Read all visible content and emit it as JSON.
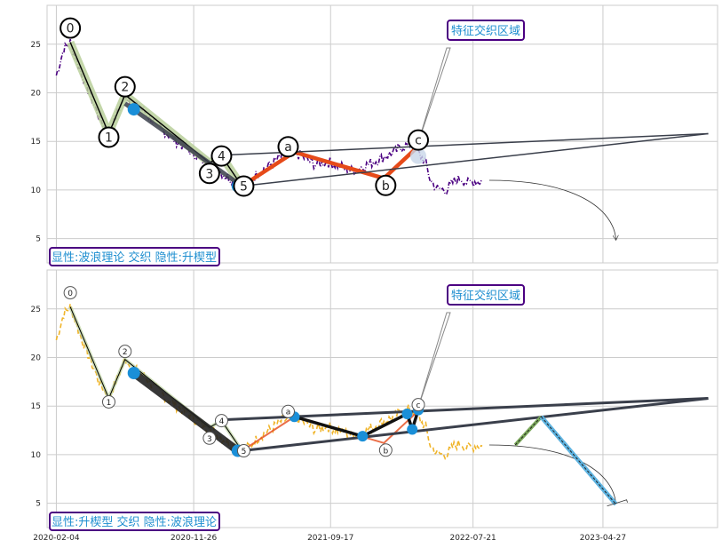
{
  "colors": {
    "top_price": "#4b0082",
    "bottom_price": "#f0b429",
    "box_border": "#4b0082",
    "box_text": "#1f8fd0",
    "impulse": "#000000",
    "impulse_glow": "#b8cf9a",
    "abc": "#e64a19",
    "triangle": "#3a3f4b",
    "node": "#1a8fd8",
    "target_line": "#5eb3e0"
  },
  "x_tick_labels": [
    "2020-02-04",
    "2020-11-26",
    "2021-09-17",
    "2022-07-21",
    "2023-04-27"
  ],
  "chart_data": [
    {
      "type": "line",
      "panel": "top",
      "xlim": [
        "2020-01-15",
        "2023-12-30"
      ],
      "ylim": [
        2.5,
        29
      ],
      "y_ticks": [
        5,
        10,
        15,
        20,
        25
      ],
      "grid": true,
      "price_series": {
        "x": [
          "2020-02-04",
          "2020-02-20",
          "2020-03-05",
          "2020-03-25",
          "2020-04-15",
          "2020-05-06",
          "2020-05-27",
          "2020-06-17",
          "2020-07-01",
          "2020-07-20",
          "2020-08-10",
          "2020-09-01",
          "2020-09-25",
          "2020-10-20",
          "2020-11-15",
          "2020-12-10",
          "2021-01-05",
          "2021-02-01",
          "2021-02-25",
          "2021-03-10",
          "2021-03-25",
          "2021-04-15",
          "2021-05-10",
          "2021-06-05",
          "2021-07-01",
          "2021-07-25",
          "2021-08-15",
          "2021-09-10",
          "2021-10-05",
          "2021-11-01",
          "2021-11-25",
          "2021-12-15",
          "2022-01-10",
          "2022-02-01",
          "2022-02-20",
          "2022-03-10",
          "2022-03-25",
          "2022-04-10",
          "2022-04-20",
          "2022-05-05",
          "2022-05-25",
          "2022-06-10",
          "2022-06-25",
          "2022-07-10",
          "2022-07-25",
          "2022-08-10"
        ],
        "values": [
          21.8,
          24.5,
          25.2,
          22.5,
          20.0,
          17.5,
          15.8,
          18.2,
          19.8,
          18.8,
          18.2,
          17.0,
          16.0,
          15.0,
          14.2,
          13.2,
          12.5,
          11.5,
          10.8,
          10.4,
          10.8,
          11.8,
          12.6,
          13.5,
          13.9,
          13.2,
          12.6,
          12.9,
          12.5,
          12.0,
          12.4,
          12.8,
          13.4,
          13.9,
          14.5,
          14.7,
          13.8,
          12.8,
          11.0,
          10.1,
          10.0,
          10.9,
          11.2,
          10.7,
          10.9,
          10.9
        ]
      },
      "wave_labels": [
        {
          "label": "0",
          "x": "2020-03-05",
          "y": 25.2
        },
        {
          "label": "1",
          "x": "2020-05-27",
          "y": 15.8
        },
        {
          "label": "2",
          "x": "2020-07-01",
          "y": 19.8
        },
        {
          "label": "3",
          "x": "2020-12-30",
          "y": 12.8
        },
        {
          "label": "4",
          "x": "2021-01-25",
          "y": 13.5
        },
        {
          "label": "5",
          "x": "2021-03-10",
          "y": 10.4
        },
        {
          "label": "a",
          "x": "2021-07-01",
          "y": 13.9
        },
        {
          "label": "b",
          "x": "2022-01-10",
          "y": 11.2
        },
        {
          "label": "c",
          "x": "2022-03-25",
          "y": 14.5
        }
      ],
      "textbox_top": "特征交织区域",
      "textbox_bottom": "显性:波浪理论 交织 隐性:升楔型"
    },
    {
      "type": "line",
      "panel": "bottom",
      "xlim": [
        "2020-01-15",
        "2023-12-30"
      ],
      "ylim": [
        2.5,
        29
      ],
      "y_ticks": [
        5,
        10,
        15,
        20,
        25
      ],
      "grid": true,
      "wave_labels": [
        {
          "label": "0",
          "x": "2020-03-05",
          "y": 25.2
        },
        {
          "label": "1",
          "x": "2020-05-27",
          "y": 15.8
        },
        {
          "label": "2",
          "x": "2020-07-01",
          "y": 19.8
        },
        {
          "label": "3",
          "x": "2020-12-30",
          "y": 12.8
        },
        {
          "label": "4",
          "x": "2021-01-25",
          "y": 13.5
        },
        {
          "label": "5",
          "x": "2021-03-10",
          "y": 10.4
        },
        {
          "label": "a",
          "x": "2021-07-01",
          "y": 13.9
        },
        {
          "label": "b",
          "x": "2022-01-10",
          "y": 11.2
        },
        {
          "label": "c",
          "x": "2022-03-25",
          "y": 14.5
        }
      ],
      "target_projection": {
        "x": [
          "2022-10-20",
          "2022-12-15",
          "2023-05-25"
        ],
        "values": [
          11.0,
          13.9,
          4.9
        ]
      },
      "textbox_top": "特征交织区域",
      "textbox_bottom": "显性:升楔型 交织 隐性:波浪理论"
    }
  ]
}
